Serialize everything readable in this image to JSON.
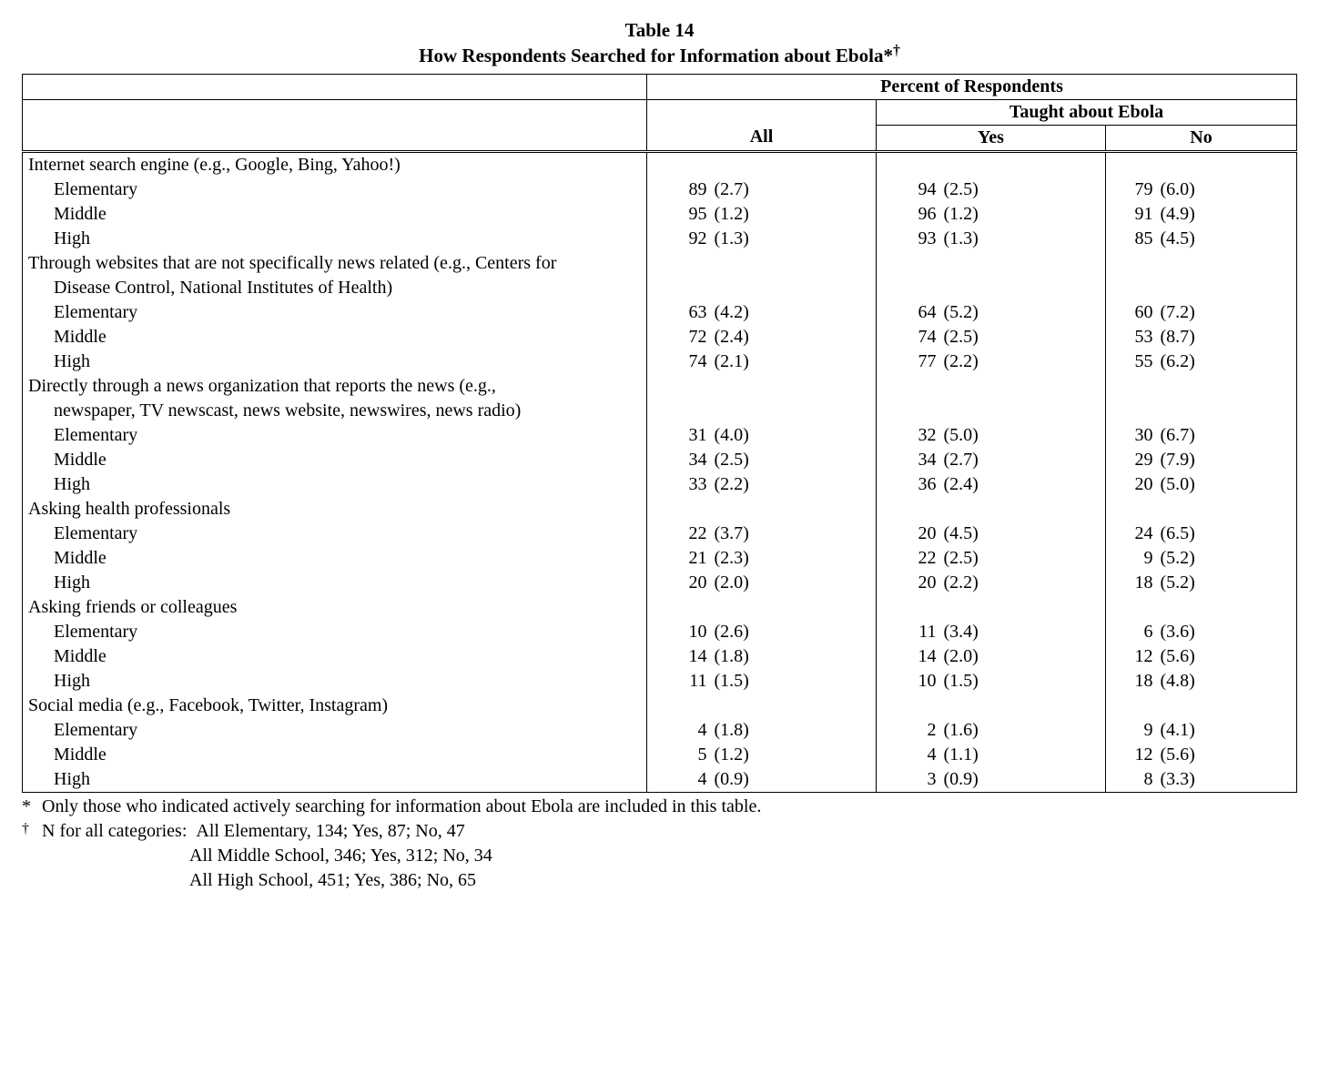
{
  "title": {
    "line1": "Table 14",
    "line2": "How Respondents Searched for Information about Ebola*",
    "dagger": "†"
  },
  "headers": {
    "span": "Percent of Respondents",
    "all": "All",
    "taught": "Taught about Ebola",
    "yes": "Yes",
    "no": "No"
  },
  "levels": [
    "Elementary",
    "Middle",
    "High"
  ],
  "categories": [
    {
      "label": "Internet search engine (e.g., Google, Bing, Yahoo!)",
      "wrap": null,
      "rows": [
        {
          "all_v": "89",
          "all_se": "(2.7)",
          "yes_v": "94",
          "yes_se": "(2.5)",
          "no_v": "79",
          "no_se": "(6.0)"
        },
        {
          "all_v": "95",
          "all_se": "(1.2)",
          "yes_v": "96",
          "yes_se": "(1.2)",
          "no_v": "91",
          "no_se": "(4.9)"
        },
        {
          "all_v": "92",
          "all_se": "(1.3)",
          "yes_v": "93",
          "yes_se": "(1.3)",
          "no_v": "85",
          "no_se": "(4.5)"
        }
      ]
    },
    {
      "label": "Through websites that are not specifically news related (e.g., Centers for",
      "wrap": "Disease Control, National Institutes of Health)",
      "rows": [
        {
          "all_v": "63",
          "all_se": "(4.2)",
          "yes_v": "64",
          "yes_se": "(5.2)",
          "no_v": "60",
          "no_se": "(7.2)"
        },
        {
          "all_v": "72",
          "all_se": "(2.4)",
          "yes_v": "74",
          "yes_se": "(2.5)",
          "no_v": "53",
          "no_se": "(8.7)"
        },
        {
          "all_v": "74",
          "all_se": "(2.1)",
          "yes_v": "77",
          "yes_se": "(2.2)",
          "no_v": "55",
          "no_se": "(6.2)"
        }
      ]
    },
    {
      "label": "Directly through a news organization that reports the news (e.g.,",
      "wrap": "newspaper, TV newscast, news website, newswires, news radio)",
      "rows": [
        {
          "all_v": "31",
          "all_se": "(4.0)",
          "yes_v": "32",
          "yes_se": "(5.0)",
          "no_v": "30",
          "no_se": "(6.7)"
        },
        {
          "all_v": "34",
          "all_se": "(2.5)",
          "yes_v": "34",
          "yes_se": "(2.7)",
          "no_v": "29",
          "no_se": "(7.9)"
        },
        {
          "all_v": "33",
          "all_se": "(2.2)",
          "yes_v": "36",
          "yes_se": "(2.4)",
          "no_v": "20",
          "no_se": "(5.0)"
        }
      ]
    },
    {
      "label": "Asking health professionals",
      "wrap": null,
      "rows": [
        {
          "all_v": "22",
          "all_se": "(3.7)",
          "yes_v": "20",
          "yes_se": "(4.5)",
          "no_v": "24",
          "no_se": "(6.5)"
        },
        {
          "all_v": "21",
          "all_se": "(2.3)",
          "yes_v": "22",
          "yes_se": "(2.5)",
          "no_v": "9",
          "no_se": "(5.2)"
        },
        {
          "all_v": "20",
          "all_se": "(2.0)",
          "yes_v": "20",
          "yes_se": "(2.2)",
          "no_v": "18",
          "no_se": "(5.2)"
        }
      ]
    },
    {
      "label": "Asking friends or colleagues",
      "wrap": null,
      "rows": [
        {
          "all_v": "10",
          "all_se": "(2.6)",
          "yes_v": "11",
          "yes_se": "(3.4)",
          "no_v": "6",
          "no_se": "(3.6)"
        },
        {
          "all_v": "14",
          "all_se": "(1.8)",
          "yes_v": "14",
          "yes_se": "(2.0)",
          "no_v": "12",
          "no_se": "(5.6)"
        },
        {
          "all_v": "11",
          "all_se": "(1.5)",
          "yes_v": "10",
          "yes_se": "(1.5)",
          "no_v": "18",
          "no_se": "(4.8)"
        }
      ]
    },
    {
      "label": "Social media (e.g., Facebook, Twitter, Instagram)",
      "wrap": null,
      "rows": [
        {
          "all_v": "4",
          "all_se": "(1.8)",
          "yes_v": "2",
          "yes_se": "(1.6)",
          "no_v": "9",
          "no_se": "(4.1)"
        },
        {
          "all_v": "5",
          "all_se": "(1.2)",
          "yes_v": "4",
          "yes_se": "(1.1)",
          "no_v": "12",
          "no_se": "(5.6)"
        },
        {
          "all_v": "4",
          "all_se": "(0.9)",
          "yes_v": "3",
          "yes_se": "(0.9)",
          "no_v": "8",
          "no_se": "(3.3)"
        }
      ]
    }
  ],
  "footnotes": {
    "star_mark": "*",
    "star_text": "Only those who indicated actively searching for information about Ebola are included in this table.",
    "dagger_mark": "†",
    "dagger_lead": "N for all categories:",
    "dagger_lines": [
      "All Elementary, 134; Yes, 87; No, 47",
      "All Middle School, 346; Yes, 312; No, 34",
      "All High School, 451; Yes, 386; No, 65"
    ]
  },
  "layout": {
    "col_widths": [
      "49%",
      "5%",
      "6%",
      "7%",
      "5%",
      "6%",
      "7%",
      "4%",
      "6%",
      "5%"
    ]
  }
}
